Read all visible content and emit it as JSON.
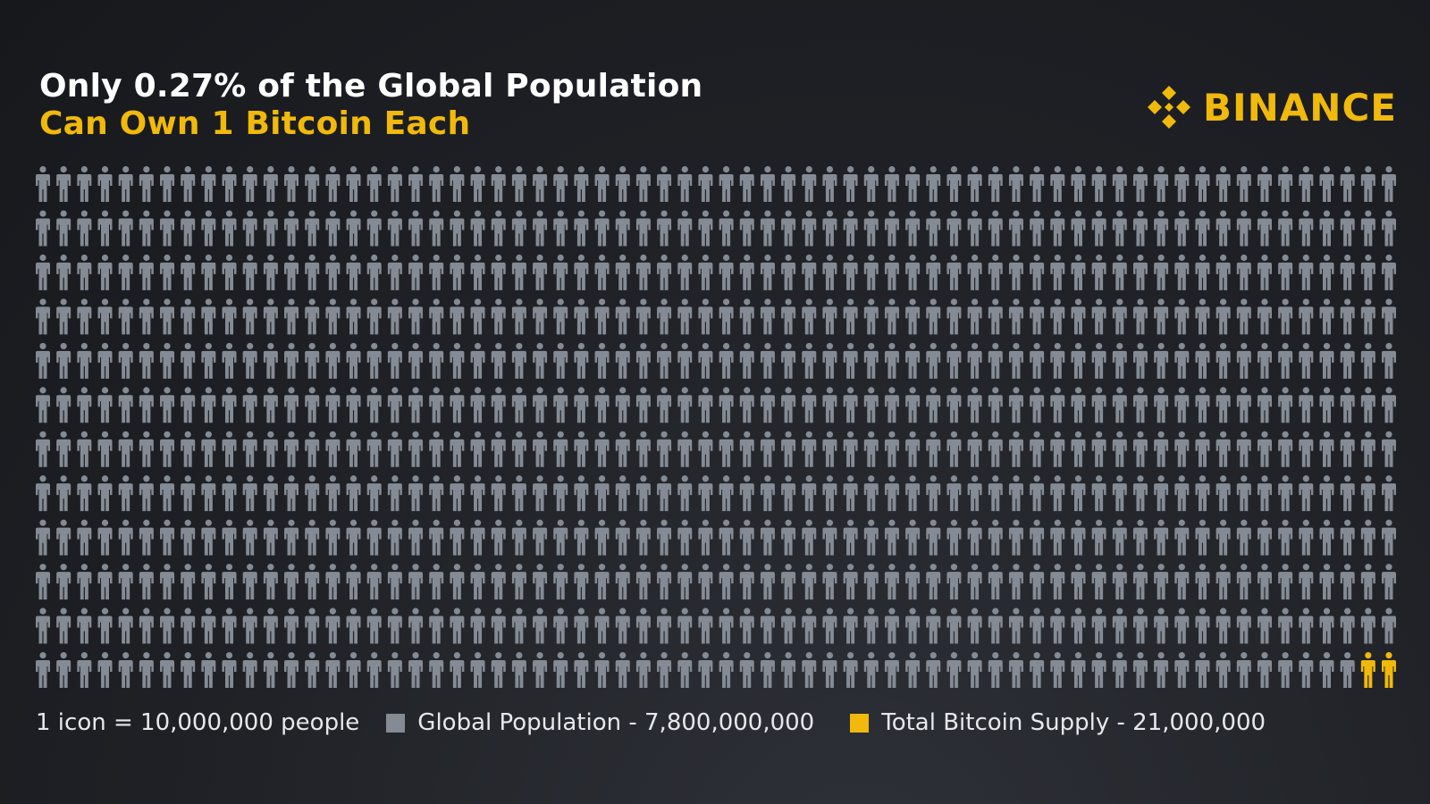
{
  "title": {
    "line1": "Only 0.27% of the Global Population",
    "line2": "Can Own 1 Bitcoin Each"
  },
  "brand": {
    "name": "BINANCE",
    "icon": "binance-diamond-icon",
    "color": "#f0b90b"
  },
  "legend": {
    "scale_note": "1 icon = 10,000,000 people",
    "items": [
      {
        "label": "Global Population - 7,800,000,000",
        "color": "#858b94"
      },
      {
        "label": "Total Bitcoin Supply - 21,000,000",
        "color": "#f0b90b"
      }
    ]
  },
  "chart_data": {
    "type": "pictograph",
    "unit": "1 icon = 10,000,000 people",
    "icon": "person-icon",
    "series": [
      {
        "name": "Global Population",
        "value": 7800000000,
        "icon_count": 780,
        "color": "#858b94"
      },
      {
        "name": "Total Bitcoin Supply",
        "value": 21000000,
        "icon_count": 2,
        "color": "#f0b90b"
      }
    ],
    "rows": 12,
    "columns": 66,
    "highlight_position": "bottom-right"
  }
}
